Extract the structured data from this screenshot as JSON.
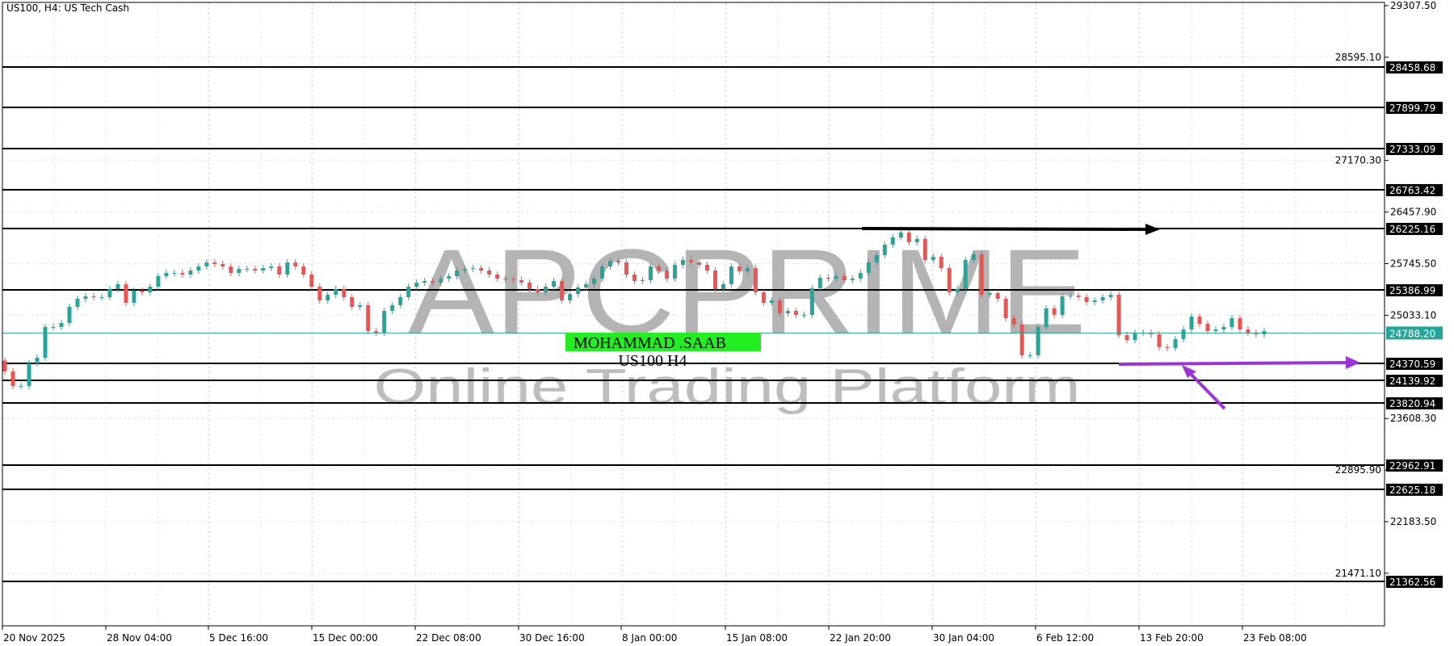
{
  "chart_data": {
    "type": "candlestick",
    "title": "US100, H4:  US Tech Cash",
    "y_range": [
      20758.7,
      29307.5
    ],
    "y_ticks": [
      "29307.50",
      "28595.10",
      "27170.30",
      "26457.90",
      "25745.50",
      "25033.10",
      "23608.30",
      "22895.90",
      "22183.50",
      "21471.10"
    ],
    "x_ticks": [
      "20 Nov 2025",
      "28 Nov 04:00",
      "5 Dec 16:00",
      "15 Dec 00:00",
      "22 Dec 08:00",
      "30 Dec 16:00",
      "8 Jan 00:00",
      "15 Jan 08:00",
      "22 Jan 20:00",
      "30 Jan 04:00",
      "6 Feb 12:00",
      "13 Feb 20:00",
      "23 Feb 08:00"
    ],
    "grid": true,
    "bull_color": "#26a69a",
    "bear_color": "#ef5350",
    "closes": [
      24257,
      24057,
      24057,
      24369,
      24447,
      24871,
      24871,
      24926,
      25149,
      25261,
      25294,
      25283,
      25283,
      25395,
      25462,
      25205,
      25372,
      25350,
      25428,
      25573,
      25617,
      25617,
      25595,
      25651,
      25707,
      25762,
      25740,
      25707,
      25617,
      25673,
      25673,
      25651,
      25684,
      25707,
      25595,
      25762,
      25707,
      25595,
      25428,
      25238,
      25316,
      25395,
      25283,
      25149,
      25172,
      24815,
      24792,
      25093,
      25172,
      25283,
      25428,
      25484,
      25506,
      25484,
      25540,
      25573,
      25651,
      25673,
      25684,
      25651,
      25595,
      25540,
      25528,
      25517,
      25484,
      25395,
      25350,
      25428,
      25506,
      25238,
      25328,
      25417,
      25462,
      25540,
      25707,
      25785,
      25762,
      25595,
      25506,
      25517,
      25707,
      25651,
      25540,
      25729,
      25796,
      25762,
      25729,
      25651,
      25395,
      25462,
      25707,
      25640,
      25684,
      25350,
      25205,
      25238,
      25060,
      25093,
      25038,
      25038,
      25406,
      25551,
      25540,
      25573,
      25517,
      25540,
      25617,
      25762,
      25863,
      26008,
      26108,
      26175,
      26041,
      26086,
      25796,
      25840,
      25684,
      25350,
      25395,
      25796,
      25874,
      25316,
      25339,
      25261,
      24993,
      24904,
      24480,
      24480,
      24871,
      25127,
      25038,
      25294,
      25305,
      25283,
      25216,
      25238,
      25283,
      25316,
      24759,
      24692,
      24792,
      24792,
      24770,
      24592,
      24581,
      24703,
      24837,
      25016,
      24915,
      24815,
      24837,
      24871,
      24993,
      24837,
      24792,
      24770,
      24815
    ],
    "horizontal_levels": [
      "28458.68",
      "27899.79",
      "27333.09",
      "26763.42",
      "26225.16",
      "25386.99",
      "24370.59",
      "24139.92",
      "23820.94",
      "22962.91",
      "22625.18",
      "21362.56"
    ],
    "current_price": "24788.20",
    "current_price_color": "#26a69a",
    "annotations": {
      "resistance_arrow_color": "#000000",
      "support_arrow_color": "#9b35d6",
      "support_arrow_level": 24370.59
    }
  },
  "watermark": {
    "logo": "APCPRIME",
    "tagline": "Online Trading Platform"
  },
  "label": {
    "name": "MOHAMMAD .SAAB",
    "symbol": "US100 H4",
    "bg_color": "#22ee22"
  }
}
